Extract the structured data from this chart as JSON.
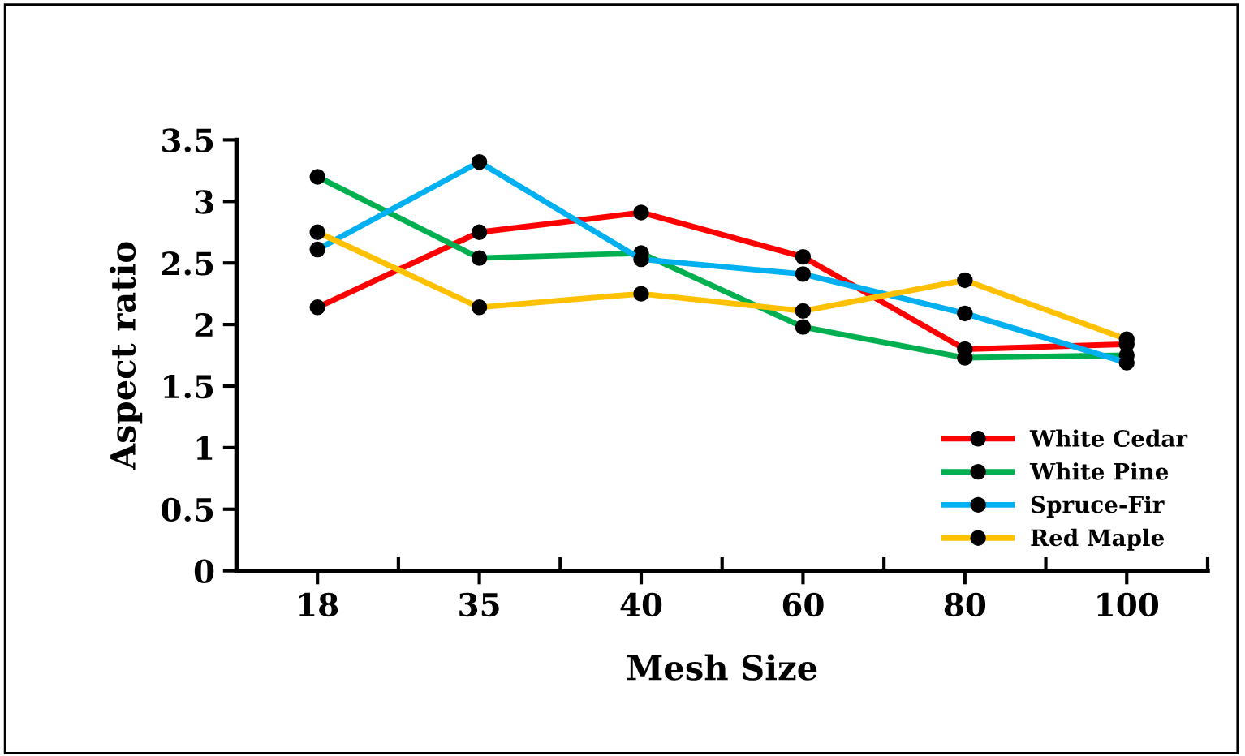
{
  "chart_data": {
    "type": "line",
    "xlabel": "Mesh Size",
    "ylabel": "Aspect ratio",
    "categories": [
      "18",
      "35",
      "40",
      "60",
      "80",
      "100"
    ],
    "series": [
      {
        "name": "White Cedar",
        "color": "#ff0000",
        "values": [
          2.14,
          2.75,
          2.91,
          2.55,
          1.8,
          1.84
        ]
      },
      {
        "name": "White Pine",
        "color": "#00b050",
        "values": [
          3.2,
          2.54,
          2.58,
          1.98,
          1.73,
          1.75
        ]
      },
      {
        "name": "Spruce-Fir",
        "color": "#00b0f0",
        "values": [
          2.61,
          3.32,
          2.53,
          2.41,
          2.09,
          1.69
        ]
      },
      {
        "name": "Red Maple",
        "color": "#ffc000",
        "values": [
          2.75,
          2.14,
          2.25,
          2.11,
          2.36,
          1.88
        ]
      }
    ],
    "ylim": [
      0,
      3.5
    ],
    "yticks": [
      0,
      0.5,
      1,
      1.5,
      2,
      2.5,
      3,
      3.5
    ],
    "legend": "bottom right",
    "marker": "circle",
    "line_style": "solid",
    "grid": false
  }
}
